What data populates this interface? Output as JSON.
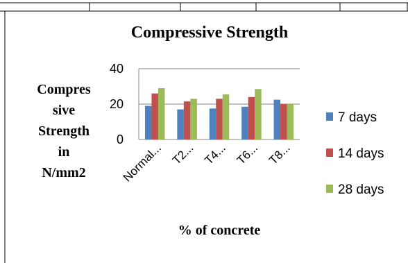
{
  "chart_data": {
    "type": "bar",
    "title": "Compressive Strength",
    "xlabel": "% of concrete",
    "ylabel_lines": [
      "Compres",
      "sive",
      "Strength",
      "in",
      "N/mm2"
    ],
    "categories": [
      "Normal...",
      "T2...",
      "T4...",
      "T6...",
      "T8..."
    ],
    "yticks": [
      "0",
      "20",
      "40"
    ],
    "ylim": [
      0,
      40
    ],
    "grid": true,
    "legend_position": "right",
    "series": [
      {
        "name": "7 days",
        "color": "#4f81bd",
        "values": [
          19,
          17,
          17.5,
          18.5,
          22.5
        ]
      },
      {
        "name": "14 days",
        "color": "#c0504d",
        "values": [
          26,
          21.5,
          23,
          24,
          20
        ]
      },
      {
        "name": "28 days",
        "color": "#9bbb59",
        "values": [
          29,
          23,
          25.5,
          28.5,
          20
        ]
      }
    ]
  }
}
